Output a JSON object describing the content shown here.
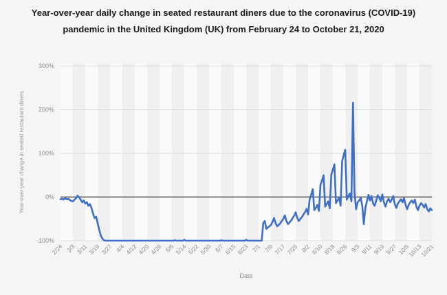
{
  "title": "Year-over-year daily change in seated restaurant diners due to the coronavirus (COVID-19) pandemic in the United Kingdom (UK) from February 24 to October 21, 2020",
  "chart_data": {
    "type": "line",
    "title": "Year-over-year daily change in seated restaurant diners due to the coronavirus (COVID-19) pandemic in the United Kingdom (UK) from February 24 to October 21, 2020",
    "xlabel": "Date",
    "ylabel": "Year-over-year change in seated restaurant diners",
    "x_start": "2/24/2020",
    "x_end": "10/21/2020",
    "x_frequency": "daily",
    "x_tick_labels": [
      "2/24",
      "3/3",
      "3/11",
      "3/19",
      "3/27",
      "4/4",
      "4/12",
      "4/20",
      "4/28",
      "5/6",
      "5/14",
      "5/22",
      "5/30",
      "6/7",
      "6/15",
      "6/23",
      "7/1",
      "7/9",
      "7/17",
      "7/25",
      "8/2",
      "8/10",
      "8/18",
      "8/26",
      "9/3",
      "9/11",
      "9/19",
      "9/27",
      "10/5",
      "10/13",
      "10/21"
    ],
    "y_tick_labels": [
      "300%",
      "200%",
      "100%",
      "0%",
      "-100%"
    ],
    "y_tick_values": [
      300,
      200,
      100,
      0,
      -100
    ],
    "ylim": [
      -100,
      305
    ],
    "grid": "horizontal",
    "legend": "none",
    "unit": "percent",
    "colors": {
      "line": "#3e6fc7",
      "zero_line": "#4d4d4d",
      "gridline": "#dcdcdc",
      "background": "#f5f5f5",
      "stripe_light": "#fafafa",
      "stripe_dark": "#f0f0f0",
      "tick_text": "#8c8c8c",
      "axis_title_text": "#999999",
      "title_text": "#1b1b1b"
    },
    "series": [
      {
        "name": "Year-over-year change in seated restaurant diners (%)",
        "values": [
          -5,
          -4,
          -6,
          -3,
          -5,
          -4,
          -7,
          -9,
          -10,
          -6,
          -3,
          3,
          -1,
          -6,
          -12,
          -8,
          -15,
          -12,
          -20,
          -16,
          -25,
          -38,
          -48,
          -45,
          -60,
          -75,
          -88,
          -95,
          -99,
          -100,
          -100,
          -100,
          -100,
          -100,
          -100,
          -100,
          -100,
          -100,
          -100,
          -100,
          -100,
          -100,
          -100,
          -100,
          -100,
          -100,
          -100,
          -100,
          -100,
          -100,
          -100,
          -100,
          -100,
          -100,
          -100,
          -100,
          -100,
          -100,
          -100,
          -100,
          -100,
          -100,
          -100,
          -100,
          -100,
          -100,
          -100,
          -100,
          -100,
          -100,
          -100,
          -100,
          -100,
          -100,
          -99,
          -100,
          -100,
          -100,
          -100,
          -100,
          -98,
          -100,
          -100,
          -100,
          -100,
          -100,
          -100,
          -100,
          -100,
          -100,
          -100,
          -100,
          -100,
          -100,
          -100,
          -100,
          -100,
          -100,
          -100,
          -100,
          -100,
          -100,
          -100,
          -100,
          -99,
          -100,
          -100,
          -100,
          -100,
          -100,
          -100,
          -100,
          -100,
          -100,
          -100,
          -100,
          -100,
          -100,
          -100,
          -100,
          -98,
          -100,
          -100,
          -100,
          -100,
          -100,
          -100,
          -100,
          -100,
          -100,
          -100,
          -60,
          -55,
          -73,
          -70,
          -67,
          -64,
          -57,
          -48,
          -60,
          -67,
          -64,
          -60,
          -55,
          -50,
          -42,
          -55,
          -62,
          -58,
          -54,
          -48,
          -43,
          -35,
          -48,
          -55,
          -50,
          -46,
          -40,
          -35,
          -27,
          -40,
          -5,
          5,
          18,
          -30,
          -25,
          -18,
          -32,
          28,
          38,
          50,
          -22,
          -16,
          -10,
          -26,
          52,
          62,
          75,
          -14,
          -8,
          -2,
          -20,
          82,
          96,
          108,
          -6,
          2,
          8,
          -10,
          216,
          10,
          -28,
          -12,
          -8,
          -2,
          -20,
          -62,
          -25,
          -10,
          5,
          -8,
          2,
          -15,
          -20,
          -8,
          4,
          -2,
          -10,
          6,
          -12,
          -22,
          -10,
          -4,
          -12,
          -6,
          2,
          -16,
          -25,
          -15,
          -10,
          -5,
          -12,
          -3,
          -18,
          -28,
          -18,
          -12,
          -8,
          -14,
          -6,
          -22,
          -30,
          -20,
          -14,
          -18,
          -24,
          -16,
          -28,
          -33,
          -26,
          -30
        ]
      }
    ]
  }
}
